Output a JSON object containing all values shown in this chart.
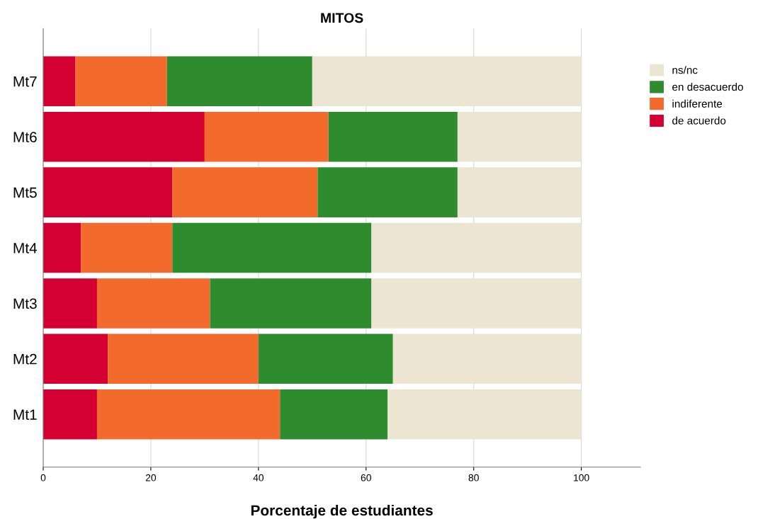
{
  "chart_data": {
    "type": "bar",
    "orientation": "horizontal",
    "stacked": true,
    "title": "MITOS",
    "xlabel": "Porcentaje de estudiantes",
    "categories": [
      "Mt7",
      "Mt6",
      "Mt5",
      "Mt4",
      "Mt3",
      "Mt2",
      "Mt1"
    ],
    "series": [
      {
        "name": "de acuerdo",
        "color": "#d50032",
        "values": [
          6,
          30,
          24,
          7,
          10,
          12,
          10
        ]
      },
      {
        "name": "indiferente",
        "color": "#f26a2c",
        "values": [
          17,
          23,
          27,
          17,
          21,
          28,
          34
        ]
      },
      {
        "name": "en desacuerdo",
        "color": "#2e8b2e",
        "values": [
          27,
          24,
          26,
          37,
          30,
          25,
          20
        ]
      },
      {
        "name": "ns/nc",
        "color": "#ebe5d1",
        "values": [
          50,
          23,
          23,
          39,
          39,
          35,
          36
        ]
      }
    ],
    "xlim": [
      0,
      111
    ],
    "xticks": [
      0,
      20,
      40,
      60,
      80,
      100
    ],
    "grid": "x",
    "legend": "top right"
  }
}
